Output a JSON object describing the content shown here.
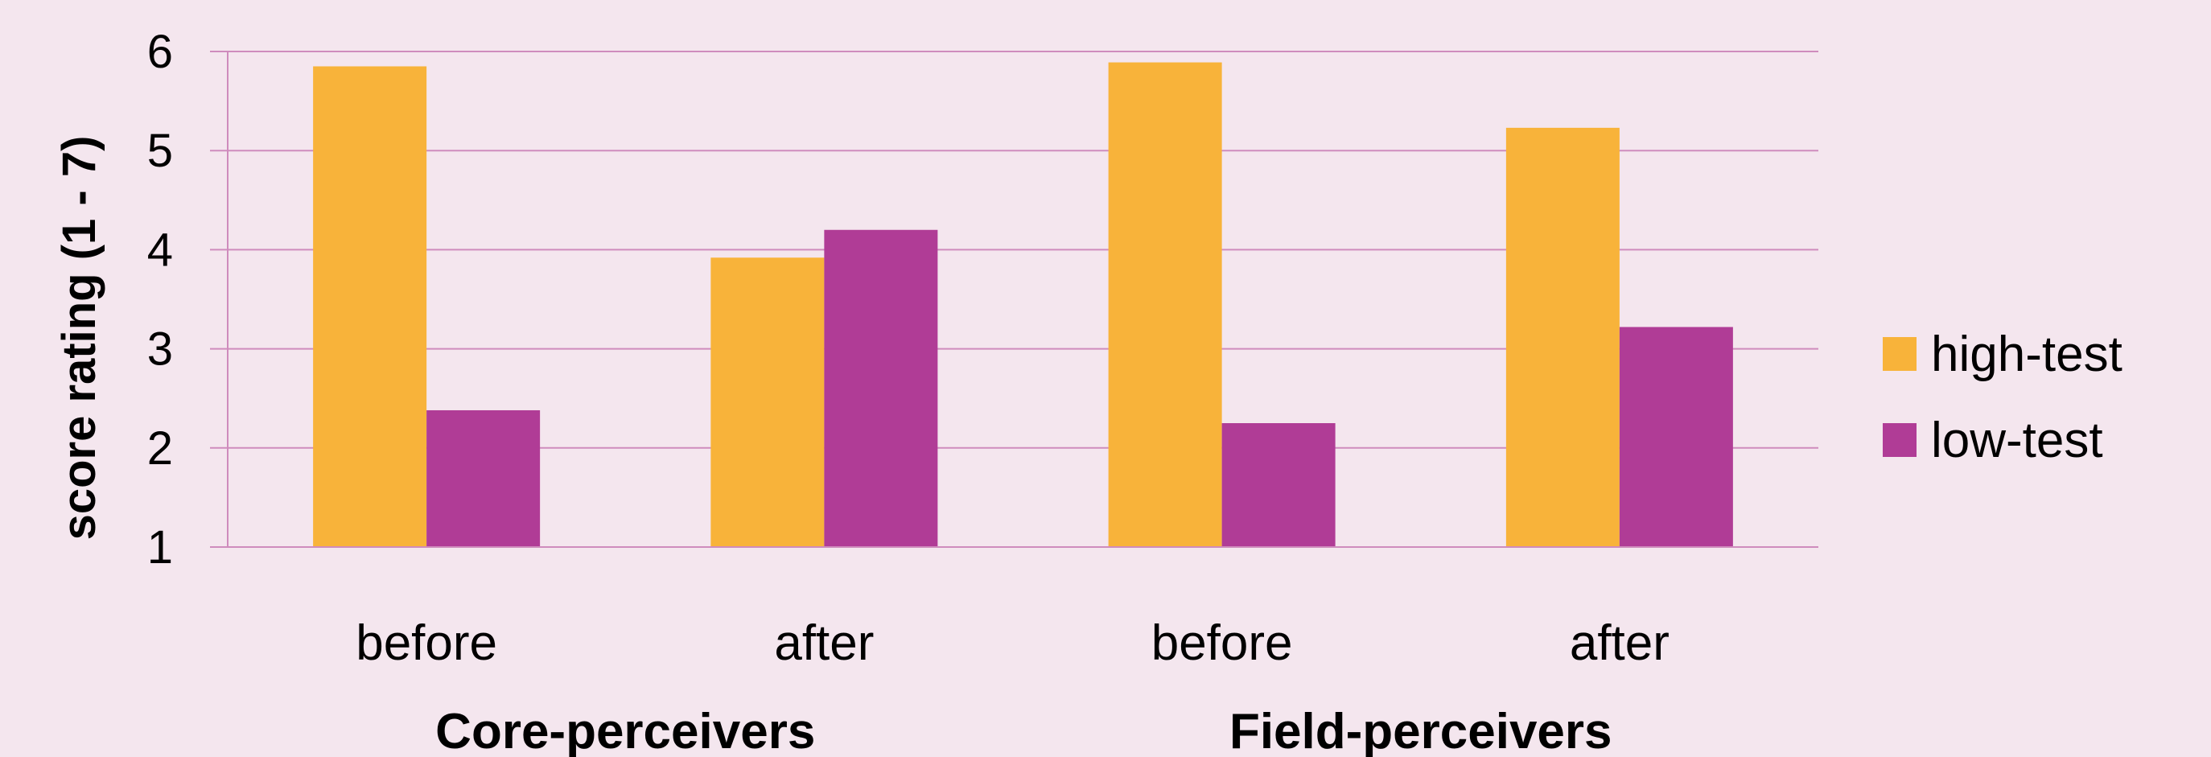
{
  "chart_data": {
    "type": "bar",
    "title": "",
    "ylabel": "score rating (1 - 7)",
    "ylim": [
      1,
      6
    ],
    "yticks": [
      "1",
      "2",
      "3",
      "4",
      "5",
      "6"
    ],
    "grid": true,
    "legend_position": "right",
    "categories": [
      "before",
      "after",
      "before",
      "after"
    ],
    "groups": [
      {
        "label": "Core-perceivers",
        "categories": [
          "before",
          "after"
        ]
      },
      {
        "label": "Field-perceivers",
        "categories": [
          "before",
          "after"
        ]
      }
    ],
    "series": [
      {
        "name": "high-test",
        "color": "#f8b33a",
        "values": [
          5.85,
          3.92,
          5.89,
          5.23
        ]
      },
      {
        "name": "low-test",
        "color": "#b03c96",
        "values": [
          2.38,
          4.2,
          2.25,
          3.22
        ]
      }
    ]
  },
  "colors": {
    "background": "#f4e6ee",
    "grid": "#cf8cbd",
    "axis": "#cf8cbd"
  }
}
